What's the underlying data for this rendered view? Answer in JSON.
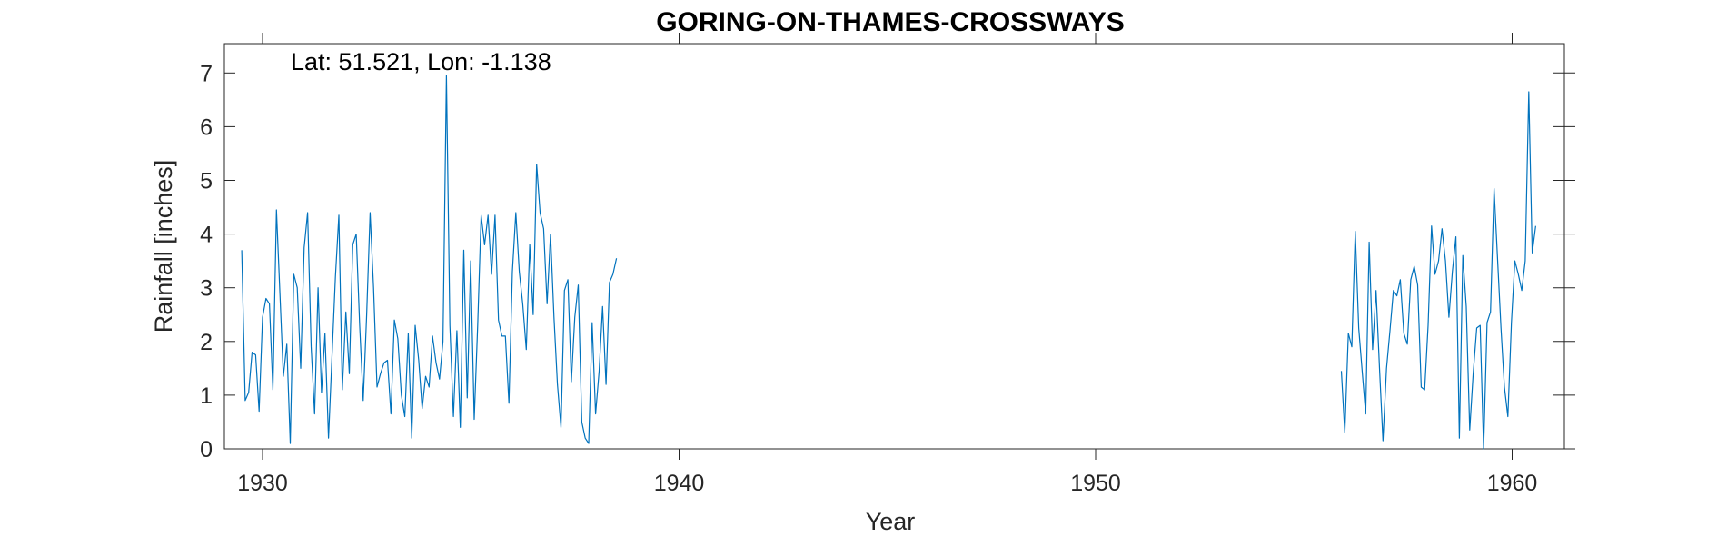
{
  "chart_data": {
    "type": "line",
    "title": "GORING-ON-THAMES-CROSSWAYS",
    "xlabel": "Year",
    "ylabel": "Rainfall [inches]",
    "annotation": "Lat: 51.521, Lon: -1.138",
    "xlim": [
      1929,
      1961.3
    ],
    "ylim": [
      0,
      7.5
    ],
    "xticks": [
      1930,
      1940,
      1950,
      1960
    ],
    "yticks": [
      0,
      1,
      2,
      3,
      4,
      5,
      6,
      7
    ],
    "grid": false,
    "line_color": "#0072BD",
    "series": [
      {
        "start_year": 1929.5,
        "step": 0.0833,
        "values": [
          3.7,
          0.9,
          1.05,
          1.8,
          1.75,
          0.7,
          2.45,
          2.8,
          2.7,
          1.1,
          4.45,
          2.9,
          1.35,
          1.95,
          0.1,
          3.25,
          3.0,
          1.5,
          3.75,
          4.4,
          1.9,
          0.65,
          3.0,
          1.05,
          2.15,
          0.2,
          1.7,
          3.2,
          4.35,
          1.1,
          2.55,
          1.4,
          3.8,
          4.0,
          2.3,
          0.9,
          2.5,
          4.4,
          3.0,
          1.15,
          1.4,
          1.6,
          1.65,
          0.65,
          2.4,
          2.05,
          1.0,
          0.6,
          2.15,
          0.2,
          2.3,
          1.65,
          0.75,
          1.35,
          1.15,
          2.1,
          1.6,
          1.3,
          2.0,
          6.95,
          2.3,
          0.6,
          2.2,
          0.4,
          3.7,
          0.95,
          3.5,
          0.55,
          2.3,
          4.35,
          3.8,
          4.35,
          3.25,
          4.35,
          2.4,
          2.1,
          2.1,
          0.85,
          3.3,
          4.4,
          3.3,
          2.7,
          1.85,
          3.8,
          2.5,
          5.3,
          4.4,
          4.1,
          2.7,
          4.0,
          2.45,
          1.2,
          0.4,
          2.95,
          3.15,
          1.25,
          2.45,
          3.05,
          0.5,
          0.2,
          0.1,
          2.35,
          0.65,
          1.45,
          2.65,
          1.2,
          3.1,
          3.25,
          3.55
        ]
      },
      {
        "start_year": 1955.9,
        "step": 0.0833,
        "values": [
          1.45,
          0.3,
          2.15,
          1.9,
          4.05,
          2.25,
          1.45,
          0.65,
          3.85,
          1.85,
          2.95,
          1.5,
          0.15,
          1.5,
          2.2,
          2.95,
          2.85,
          3.15,
          2.15,
          1.95,
          3.15,
          3.4,
          3.05,
          1.15,
          1.1,
          2.3,
          4.15,
          3.25,
          3.5,
          4.1,
          3.5,
          2.45,
          3.3,
          3.95,
          0.2,
          3.6,
          2.65,
          0.35,
          1.4,
          2.25,
          2.3,
          0.0,
          2.35,
          2.55,
          4.85,
          3.55,
          2.25,
          1.15,
          0.6,
          2.35,
          3.5,
          3.25,
          2.95,
          3.5,
          6.65,
          3.65,
          4.15
        ]
      }
    ]
  }
}
